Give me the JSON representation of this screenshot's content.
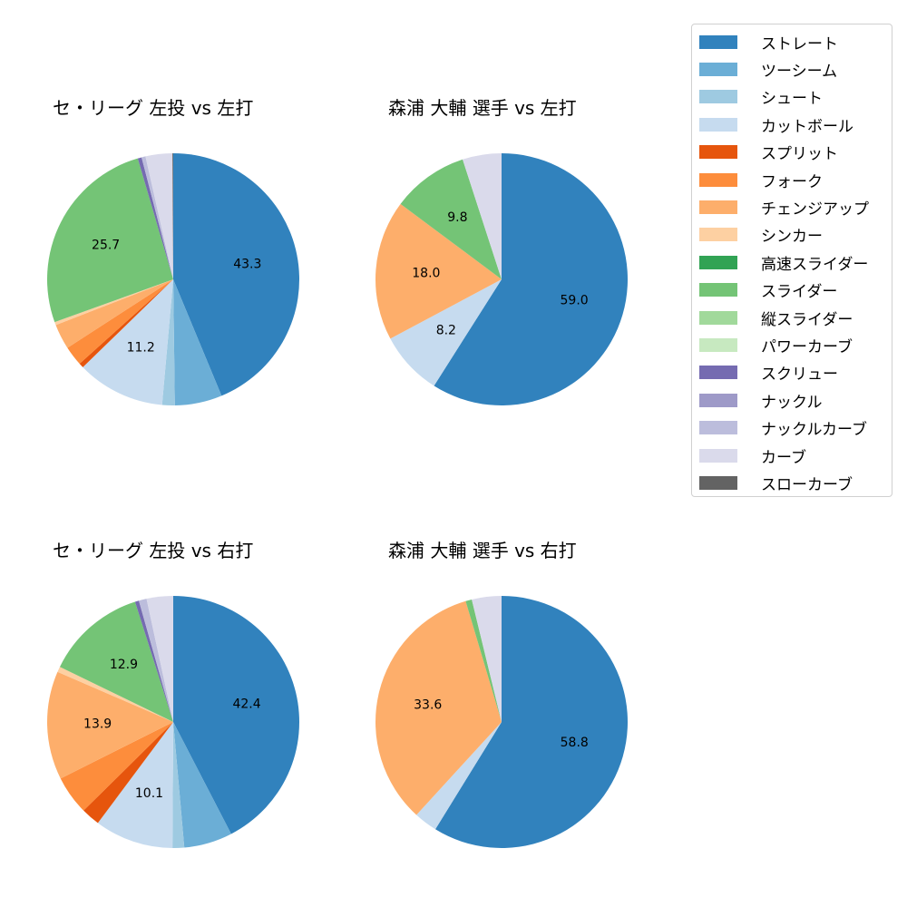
{
  "legend": {
    "items": [
      {
        "label": "ストレート",
        "color": "#3182bd"
      },
      {
        "label": "ツーシーム",
        "color": "#6baed6"
      },
      {
        "label": "シュート",
        "color": "#9ecae1"
      },
      {
        "label": "カットボール",
        "color": "#c6dbef"
      },
      {
        "label": "スプリット",
        "color": "#e6550d"
      },
      {
        "label": "フォーク",
        "color": "#fd8d3c"
      },
      {
        "label": "チェンジアップ",
        "color": "#fdae6b"
      },
      {
        "label": "シンカー",
        "color": "#fdd0a2"
      },
      {
        "label": "高速スライダー",
        "color": "#31a354"
      },
      {
        "label": "スライダー",
        "color": "#74c476"
      },
      {
        "label": "縦スライダー",
        "color": "#a1d99b"
      },
      {
        "label": "パワーカーブ",
        "color": "#c7e9c0"
      },
      {
        "label": "スクリュー",
        "color": "#756bb1"
      },
      {
        "label": "ナックル",
        "color": "#9e9ac8"
      },
      {
        "label": "ナックルカーブ",
        "color": "#bcbddc"
      },
      {
        "label": "カーブ",
        "color": "#dadaeb"
      },
      {
        "label": "スローカーブ",
        "color": "#636363"
      }
    ]
  },
  "chart_data": [
    {
      "type": "pie",
      "title": "セ・リーグ 左投 vs 左打",
      "start_angle": 90,
      "direction": "clockwise",
      "slices": [
        {
          "label": "ストレート",
          "value": 43.3,
          "shown": "43.3"
        },
        {
          "label": "ツーシーム",
          "value": 6.0
        },
        {
          "label": "シュート",
          "value": 1.6
        },
        {
          "label": "カットボール",
          "value": 11.2,
          "shown": "11.2"
        },
        {
          "label": "スプリット",
          "value": 0.6
        },
        {
          "label": "フォーク",
          "value": 2.5
        },
        {
          "label": "チェンジアップ",
          "value": 3.2
        },
        {
          "label": "シンカー",
          "value": 0.4
        },
        {
          "label": "スライダー",
          "value": 25.7,
          "shown": "25.7"
        },
        {
          "label": "スクリュー",
          "value": 0.5
        },
        {
          "label": "ナックルカーブ",
          "value": 0.5
        },
        {
          "label": "カーブ",
          "value": 3.4
        },
        {
          "label": "スローカーブ",
          "value": 0.1
        }
      ]
    },
    {
      "type": "pie",
      "title": "森浦 大輔 選手 vs 左打",
      "start_angle": 90,
      "direction": "clockwise",
      "slices": [
        {
          "label": "ストレート",
          "value": 59.0,
          "shown": "59.0"
        },
        {
          "label": "カットボール",
          "value": 8.2,
          "shown": "8.2"
        },
        {
          "label": "チェンジアップ",
          "value": 18.0,
          "shown": "18.0"
        },
        {
          "label": "スライダー",
          "value": 9.8,
          "shown": "9.8"
        },
        {
          "label": "カーブ",
          "value": 5.0
        }
      ]
    },
    {
      "type": "pie",
      "title": "セ・リーグ 左投 vs 右打",
      "start_angle": 90,
      "direction": "clockwise",
      "slices": [
        {
          "label": "ストレート",
          "value": 42.4,
          "shown": "42.4"
        },
        {
          "label": "ツーシーム",
          "value": 6.2
        },
        {
          "label": "シュート",
          "value": 1.5
        },
        {
          "label": "カットボール",
          "value": 10.1,
          "shown": "10.1"
        },
        {
          "label": "スプリット",
          "value": 2.4
        },
        {
          "label": "フォーク",
          "value": 5.0
        },
        {
          "label": "チェンジアップ",
          "value": 13.9,
          "shown": "13.9"
        },
        {
          "label": "シンカー",
          "value": 0.7
        },
        {
          "label": "スライダー",
          "value": 12.9,
          "shown": "12.9"
        },
        {
          "label": "スクリュー",
          "value": 0.5
        },
        {
          "label": "ナックルカーブ",
          "value": 1.0
        },
        {
          "label": "カーブ",
          "value": 3.4
        }
      ]
    },
    {
      "type": "pie",
      "title": "森浦 大輔 選手 vs 右打",
      "start_angle": 90,
      "direction": "clockwise",
      "slices": [
        {
          "label": "ストレート",
          "value": 58.8,
          "shown": "58.8"
        },
        {
          "label": "カットボール",
          "value": 3.0
        },
        {
          "label": "チェンジアップ",
          "value": 33.6,
          "shown": "33.6"
        },
        {
          "label": "スライダー",
          "value": 0.8
        },
        {
          "label": "カーブ",
          "value": 3.8
        }
      ]
    }
  ]
}
